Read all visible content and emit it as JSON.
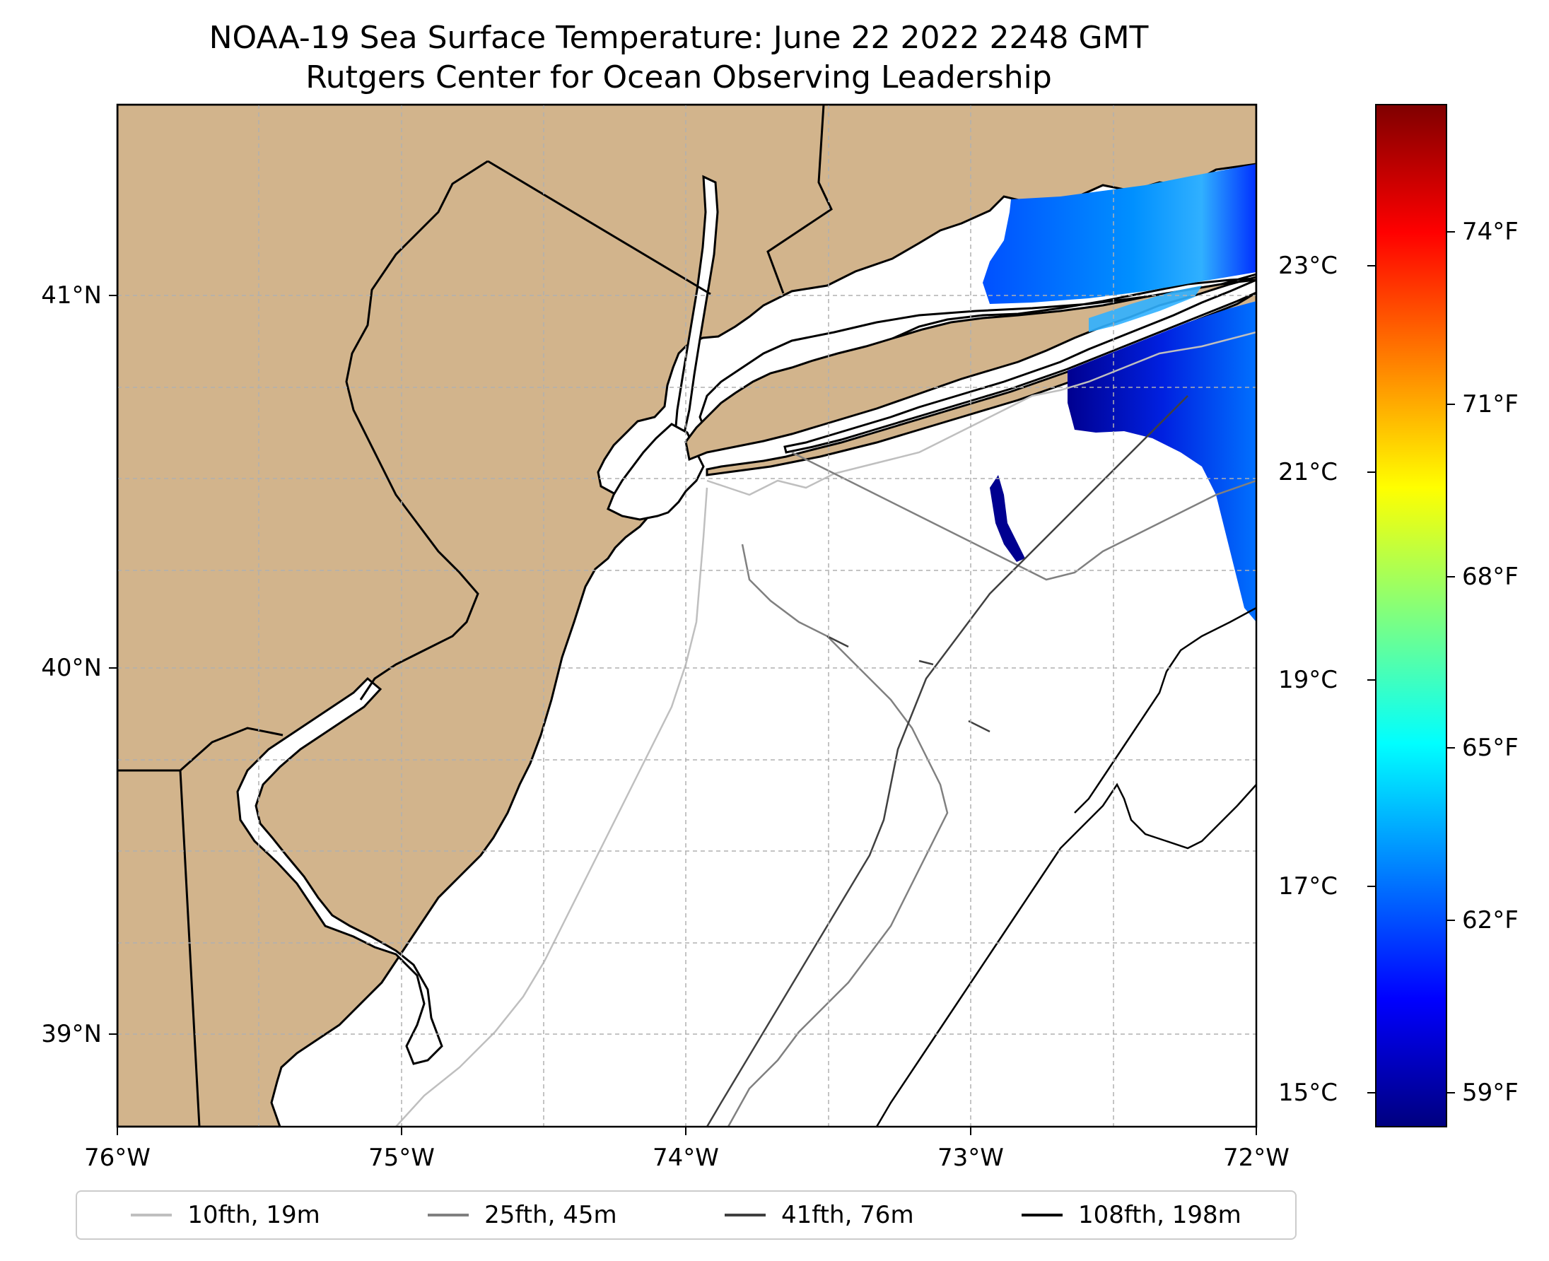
{
  "title": {
    "line1": "NOAA-19 Sea Surface Temperature: June 22 2022 2248 GMT",
    "line2": "Rutgers Center for Ocean Observing Leadership"
  },
  "map": {
    "land_color": "#d2b48c",
    "ocean_color": "#ffffff",
    "lat_labels": [
      "41°N",
      "40°N",
      "39°N"
    ],
    "lon_labels": [
      "76°W",
      "75°W",
      "74°W",
      "73°W",
      "72°W"
    ]
  },
  "colorbar": {
    "celsius_labels": [
      "23°C",
      "21°C",
      "19°C",
      "17°C",
      "15°C"
    ],
    "fahrenheit_labels": [
      "74°F",
      "71°F",
      "68°F",
      "65°F",
      "62°F",
      "59°F"
    ],
    "colors": [
      "#00007f",
      "#0000ff",
      "#007fff",
      "#00ffff",
      "#7fff7f",
      "#ffff00",
      "#ff7f00",
      "#ff0000",
      "#7f0000"
    ]
  },
  "legend": {
    "items": [
      {
        "label": "10fth, 19m",
        "color": "#bfbfbf"
      },
      {
        "label": "25fth, 45m",
        "color": "#808080"
      },
      {
        "label": "41fth, 76m",
        "color": "#404040"
      },
      {
        "label": "108fth, 198m",
        "color": "#000000"
      }
    ]
  }
}
